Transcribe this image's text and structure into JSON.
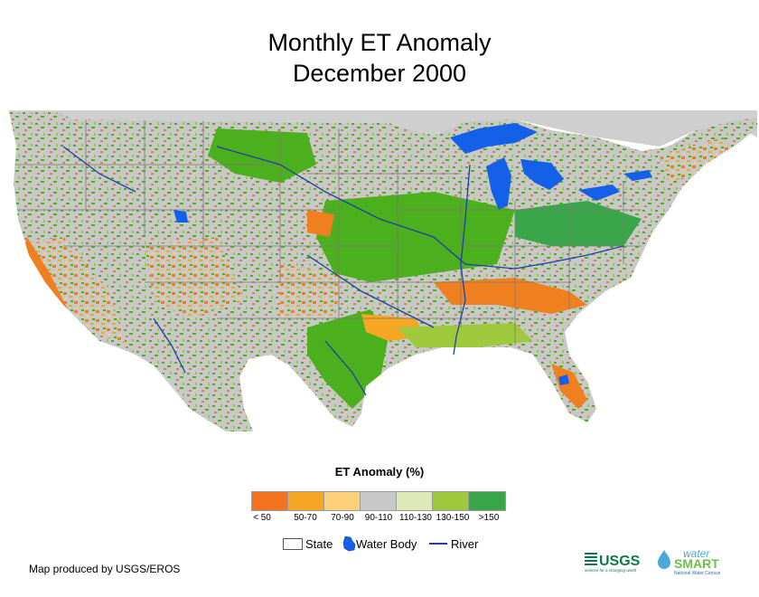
{
  "title": {
    "line1": "Monthly ET Anomaly",
    "line2": "December 2000"
  },
  "legend": {
    "title": "ET Anomaly (%)",
    "classes": [
      {
        "label": "< 50",
        "color": "#f37321"
      },
      {
        "label": "50-70",
        "color": "#f5a623"
      },
      {
        "label": "70-90",
        "color": "#fdd07a"
      },
      {
        "label": "90-110",
        "color": "#c8c8c8"
      },
      {
        "label": "110-130",
        "color": "#dfe9b8"
      },
      {
        "label": "130-150",
        "color": "#9ec93c"
      },
      {
        "label": ">150",
        "color": "#3aa64a"
      }
    ],
    "keys": {
      "state": "State",
      "water_body": "Water Body",
      "river": "River"
    }
  },
  "colors": {
    "water": "#1560e8",
    "river": "#1f3fa6",
    "land_green": "#4caf1d",
    "land_gray": "#c8c8c8",
    "land_orange": "#f0801f"
  },
  "credit": "Map produced by USGS/EROS",
  "logos": {
    "usgs": "USGS",
    "usgs_tagline": "science for a changing world",
    "watersmart_top": "water",
    "watersmart_bottom": "SMART",
    "watersmart_tagline": "National Water Census"
  }
}
